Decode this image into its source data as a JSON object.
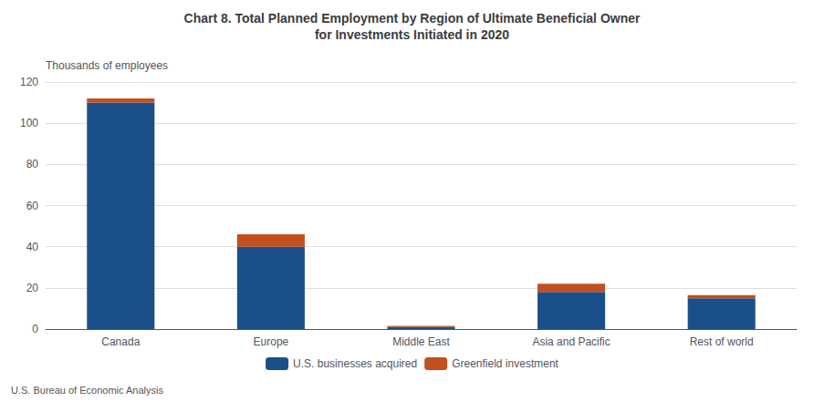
{
  "chart_data": {
    "type": "bar",
    "title": "Chart 8. Total Planned Employment by Region of Ultimate Beneficial Owner\nfor Investments Initiated in 2020",
    "ylabel": "Thousands of employees",
    "categories": [
      "Canada",
      "Europe",
      "Middle East",
      "Asia and Pacific",
      "Rest of world"
    ],
    "series": [
      {
        "name": "U.S. businesses acquired",
        "color": "#1B4F8A",
        "values": [
          110,
          40,
          1.0,
          18,
          15
        ]
      },
      {
        "name": "Greenfield investment",
        "color": "#C05020",
        "values": [
          2.0,
          6.0,
          0.5,
          4.0,
          1.5
        ]
      }
    ],
    "stacked": true,
    "ylim": [
      0,
      120
    ],
    "yticks": [
      0,
      20,
      40,
      60,
      80,
      100,
      120
    ],
    "grid": true,
    "legend": "bottom",
    "annotations": [
      "U.S. Bureau of Economic Analysis"
    ]
  }
}
